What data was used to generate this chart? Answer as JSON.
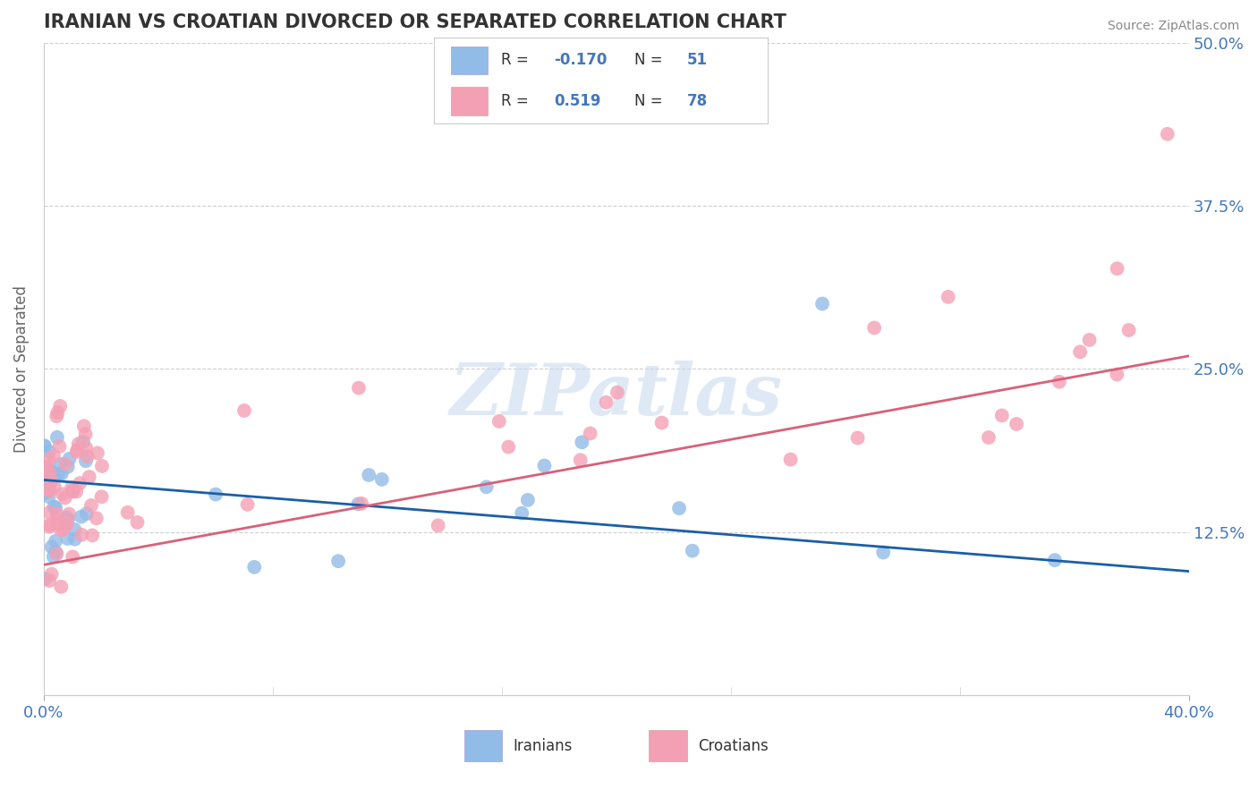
{
  "title": "IRANIAN VS CROATIAN DIVORCED OR SEPARATED CORRELATION CHART",
  "source": "Source: ZipAtlas.com",
  "ylabel_label": "Divorced or Separated",
  "xlim": [
    0.0,
    0.4
  ],
  "ylim": [
    0.0,
    0.5
  ],
  "x_ticks": [
    0.0,
    0.4
  ],
  "y_ticks": [
    0.0,
    0.125,
    0.25,
    0.375,
    0.5
  ],
  "y_tick_labels_right": [
    "",
    "12.5%",
    "25.0%",
    "37.5%",
    "50.0%"
  ],
  "x_tick_labels": [
    "0.0%",
    "40.0%"
  ],
  "iranians_color": "#92bce8",
  "croatians_color": "#f4a0b4",
  "iranians_line_color": "#1a5fa8",
  "croatians_line_color": "#d9607a",
  "R_iranians": -0.17,
  "N_iranians": 51,
  "R_croatians": 0.519,
  "N_croatians": 78,
  "legend_label_iranians": "Iranians",
  "legend_label_croatians": "Croatians",
  "watermark": "ZIPatlas",
  "background_color": "#ffffff",
  "grid_color": "#d0d0d0",
  "title_color": "#333333",
  "axis_tick_color": "#4477bb",
  "title_fontsize": 15,
  "tick_fontsize": 13,
  "source_fontsize": 10
}
